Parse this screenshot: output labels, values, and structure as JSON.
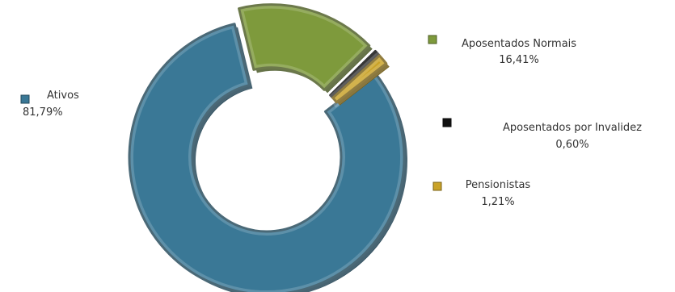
{
  "chart_data": {
    "type": "pie",
    "style": "donut",
    "title": "",
    "slices": [
      {
        "name": "Ativos",
        "value": 81.79,
        "label": "81,79%",
        "color": "#3A7896"
      },
      {
        "name": "Aposentados  Normais",
        "value": 16.41,
        "label": "16,41%",
        "color": "#7E9A3C"
      },
      {
        "name": "Aposentados  por Invalidez",
        "value": 0.6,
        "label": "0,60%",
        "color": "#111111"
      },
      {
        "name": "Pensionistas",
        "value": 1.21,
        "label": "1,21%",
        "color": "#C9A227"
      }
    ],
    "exploded_slice": "Aposentados  Normais",
    "legend": "labels beside slices"
  }
}
